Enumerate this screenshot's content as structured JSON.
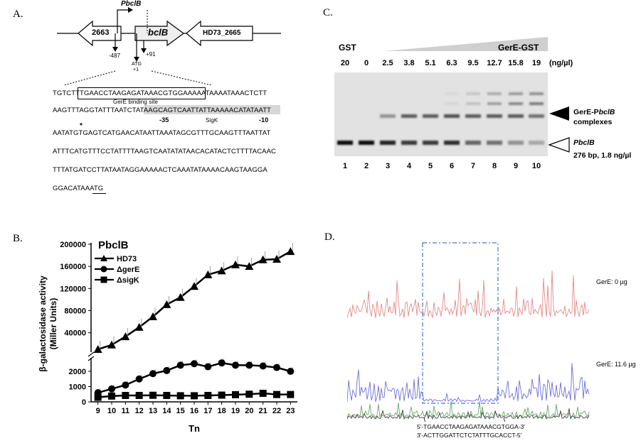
{
  "panelA": {
    "label": "A.",
    "genes": {
      "left": "2663",
      "center": "bclB",
      "right": "HD73_2665",
      "promoter": "PbclB"
    },
    "marks": {
      "m487": "-487",
      "p91": "+91",
      "atg": "ATG",
      "plus1": "+1"
    },
    "seq": [
      "TGTCTTTGAACCTAAGAGATAAACGTGGAAAAATAAAATAAACTCTT",
      "AAGTTTAGGTATTTAATCTATAAGCAGTCAATTATTAAAAACATATAATT",
      "AATATGTGAGTCATGAACATAATTAAATAGCGTTTGCAAGTTTAATTAT",
      "ATTTCATGTTTCCTATTTTAAGTCAATATATAACACATACTCTTTTACAAC",
      "TTTATGATCCTTATAATAGGAAAAACTCAAATATAAAACAAGTAAGGA",
      "GGACATAAATG"
    ],
    "binding_label": "GerE binding site",
    "minus35": "-35",
    "sigk": "SigK",
    "minus10": "-10",
    "star": "*"
  },
  "panelB": {
    "label": "B.",
    "chart_data": {
      "type": "line",
      "title": "PbclB",
      "xlabel": "Tn",
      "ylabel": "β-galactosidase activity\n(Miller Units)",
      "x": [
        9,
        10,
        11,
        12,
        13,
        14,
        15,
        16,
        17,
        18,
        19,
        20,
        21,
        22,
        23
      ],
      "yticks_low": [
        "0",
        "1000",
        "2000"
      ],
      "yticks_high": [
        "40000",
        "80000",
        "120000",
        "160000",
        "200000"
      ],
      "series": [
        {
          "name": "HD73",
          "marker": "triangle",
          "values": [
            10000,
            18000,
            33000,
            50000,
            69000,
            91000,
            104000,
            124000,
            145000,
            152000,
            163000,
            160000,
            172000,
            173000,
            187000
          ]
        },
        {
          "name": "ΔgerE",
          "marker": "circle",
          "values": [
            600,
            850,
            1100,
            1500,
            1850,
            2050,
            2400,
            2500,
            2300,
            2550,
            2400,
            2400,
            2350,
            2250,
            2000
          ]
        },
        {
          "name": "ΔsigK",
          "marker": "square",
          "values": [
            300,
            380,
            420,
            420,
            430,
            420,
            400,
            400,
            420,
            440,
            470,
            500,
            560,
            480,
            480
          ]
        }
      ]
    }
  },
  "panelC": {
    "label": "C.",
    "gst": "GST",
    "gere_gst": "GerE-GST",
    "units": "(ng/µl)",
    "conc": [
      "20",
      "0",
      "2.5",
      "3.8",
      "5.1",
      "6.3",
      "9.5",
      "12.7",
      "15.8",
      "19"
    ],
    "lanes": [
      "1",
      "2",
      "3",
      "4",
      "5",
      "6",
      "7",
      "8",
      "9",
      "10"
    ],
    "complex_label": "GerE-PbclB\ncomplexes",
    "probe_label": "PbclB",
    "probe_info": "276 bp, 1.8 ng/µl"
  },
  "panelD": {
    "label": "D.",
    "top_label": "GerE: 0 µg",
    "bottom_label": "GerE: 11.6 µg",
    "seq_fwd": "5'-TGAACCTAAGAGATAAACGTGGA-3'",
    "seq_rev": "3'-ACTTGGATTCTCTATTTGCACCT-5'"
  }
}
